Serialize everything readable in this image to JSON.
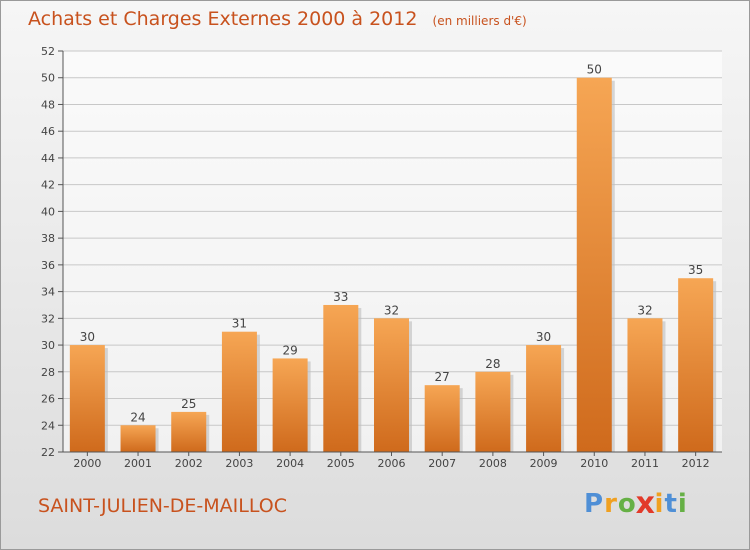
{
  "chart_data": {
    "type": "bar",
    "title": "Achats et Charges Externes 2000 à 2012",
    "unit_label": "(en milliers d'€)",
    "categories": [
      "2000",
      "2001",
      "2002",
      "2003",
      "2004",
      "2005",
      "2006",
      "2007",
      "2008",
      "2009",
      "2010",
      "2011",
      "2012"
    ],
    "values": [
      30,
      24,
      25,
      31,
      29,
      33,
      32,
      27,
      28,
      30,
      50,
      32,
      35
    ],
    "ylim": [
      22,
      52
    ],
    "yticks": [
      22,
      24,
      26,
      28,
      30,
      32,
      34,
      36,
      38,
      40,
      42,
      44,
      46,
      48,
      50,
      52
    ],
    "grid": true,
    "legend": "none",
    "colors": {
      "bar_light": "#f6a654",
      "bar_dark": "#cf6a1c",
      "text_accent": "#c8521e"
    }
  },
  "footer": {
    "commune": "SAINT-JULIEN-DE-MAILLOC",
    "logo_letters": [
      "P",
      "r",
      "o",
      "x",
      "i",
      "t",
      "i"
    ],
    "logo_colors": [
      "#4f8fd6",
      "#f0a020",
      "#66b045",
      "#e23a2a",
      "#f0a020",
      "#4f8fd6",
      "#66b045"
    ]
  }
}
